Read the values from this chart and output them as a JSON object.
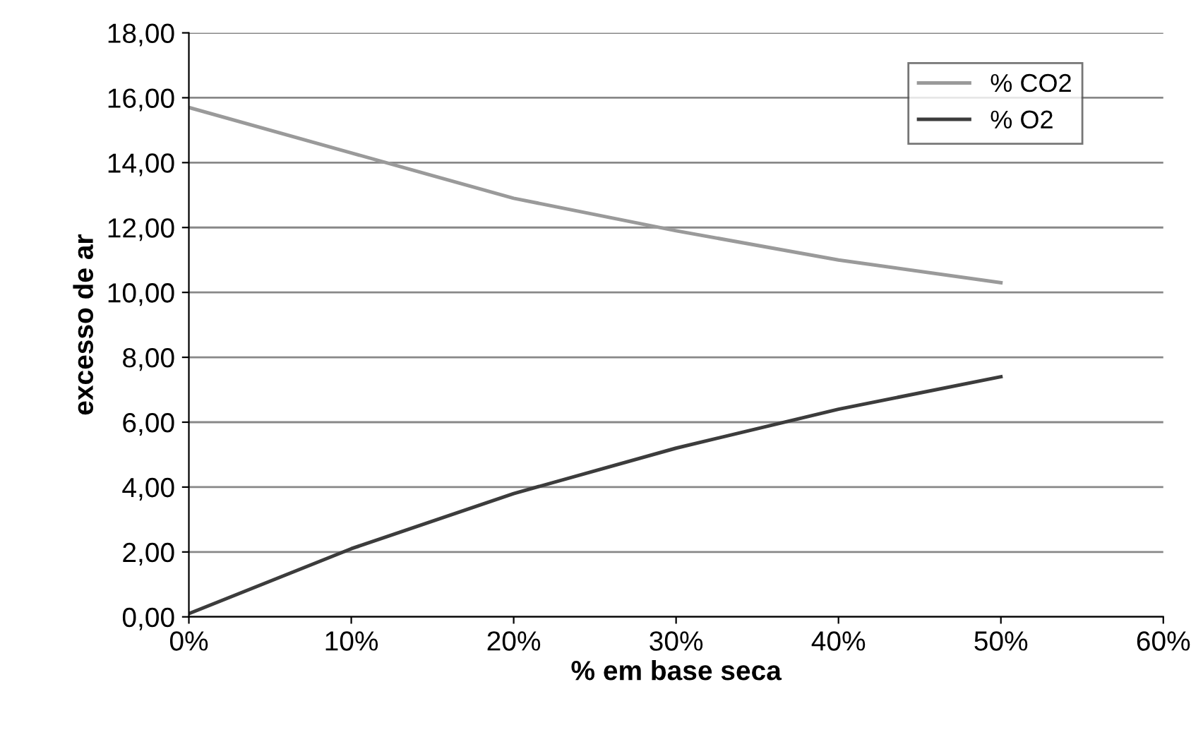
{
  "chart_data": {
    "type": "line",
    "xlabel": "% em base seca",
    "ylabel": "excesso de ar",
    "x": [
      0,
      10,
      20,
      30,
      40,
      50
    ],
    "series": [
      {
        "name": "% CO2",
        "color": "#9a9a9a",
        "values": [
          15.7,
          14.3,
          12.9,
          11.9,
          11.0,
          10.3
        ]
      },
      {
        "name": "% O2",
        "color": "#3c3c3c",
        "values": [
          0.1,
          2.1,
          3.8,
          5.2,
          6.4,
          7.4
        ]
      }
    ],
    "xlim": [
      0,
      60
    ],
    "xticks": [
      {
        "value": 0,
        "label": "0%"
      },
      {
        "value": 10,
        "label": "10%"
      },
      {
        "value": 20,
        "label": "20%"
      },
      {
        "value": 30,
        "label": "30%"
      },
      {
        "value": 40,
        "label": "40%"
      },
      {
        "value": 50,
        "label": "50%"
      },
      {
        "value": 60,
        "label": "60%"
      }
    ],
    "ylim": [
      0,
      18
    ],
    "yticks": [
      {
        "value": 0,
        "label": "0,00"
      },
      {
        "value": 2,
        "label": "2,00"
      },
      {
        "value": 4,
        "label": "4,00"
      },
      {
        "value": 6,
        "label": "6,00"
      },
      {
        "value": 8,
        "label": "8,00"
      },
      {
        "value": 10,
        "label": "10,00"
      },
      {
        "value": 12,
        "label": "12,00"
      },
      {
        "value": 14,
        "label": "14,00"
      },
      {
        "value": 16,
        "label": "16,00"
      },
      {
        "value": 18,
        "label": "18,00"
      }
    ],
    "grid": "y",
    "legend": "top right",
    "marker": "none",
    "line_style": "solid"
  }
}
